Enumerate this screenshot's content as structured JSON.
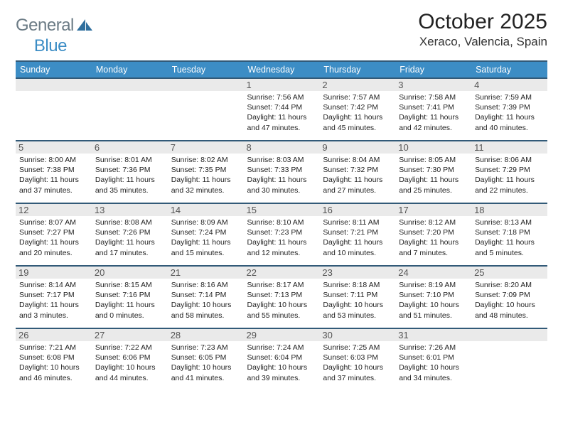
{
  "brand": {
    "general": "General",
    "blue": "Blue"
  },
  "title": "October 2025",
  "location": "Xeraco, Valencia, Spain",
  "colors": {
    "header_bg": "#3c8dc5",
    "header_border": "#325a78",
    "daynum_bg": "#eaeaea",
    "logo_gray": "#6b7b85",
    "logo_blue": "#3c8dc5"
  },
  "weekdays": [
    "Sunday",
    "Monday",
    "Tuesday",
    "Wednesday",
    "Thursday",
    "Friday",
    "Saturday"
  ],
  "weeks": [
    [
      null,
      null,
      null,
      {
        "day": "1",
        "sunrise": "Sunrise: 7:56 AM",
        "sunset": "Sunset: 7:44 PM",
        "dl1": "Daylight: 11 hours",
        "dl2": "and 47 minutes."
      },
      {
        "day": "2",
        "sunrise": "Sunrise: 7:57 AM",
        "sunset": "Sunset: 7:42 PM",
        "dl1": "Daylight: 11 hours",
        "dl2": "and 45 minutes."
      },
      {
        "day": "3",
        "sunrise": "Sunrise: 7:58 AM",
        "sunset": "Sunset: 7:41 PM",
        "dl1": "Daylight: 11 hours",
        "dl2": "and 42 minutes."
      },
      {
        "day": "4",
        "sunrise": "Sunrise: 7:59 AM",
        "sunset": "Sunset: 7:39 PM",
        "dl1": "Daylight: 11 hours",
        "dl2": "and 40 minutes."
      }
    ],
    [
      {
        "day": "5",
        "sunrise": "Sunrise: 8:00 AM",
        "sunset": "Sunset: 7:38 PM",
        "dl1": "Daylight: 11 hours",
        "dl2": "and 37 minutes."
      },
      {
        "day": "6",
        "sunrise": "Sunrise: 8:01 AM",
        "sunset": "Sunset: 7:36 PM",
        "dl1": "Daylight: 11 hours",
        "dl2": "and 35 minutes."
      },
      {
        "day": "7",
        "sunrise": "Sunrise: 8:02 AM",
        "sunset": "Sunset: 7:35 PM",
        "dl1": "Daylight: 11 hours",
        "dl2": "and 32 minutes."
      },
      {
        "day": "8",
        "sunrise": "Sunrise: 8:03 AM",
        "sunset": "Sunset: 7:33 PM",
        "dl1": "Daylight: 11 hours",
        "dl2": "and 30 minutes."
      },
      {
        "day": "9",
        "sunrise": "Sunrise: 8:04 AM",
        "sunset": "Sunset: 7:32 PM",
        "dl1": "Daylight: 11 hours",
        "dl2": "and 27 minutes."
      },
      {
        "day": "10",
        "sunrise": "Sunrise: 8:05 AM",
        "sunset": "Sunset: 7:30 PM",
        "dl1": "Daylight: 11 hours",
        "dl2": "and 25 minutes."
      },
      {
        "day": "11",
        "sunrise": "Sunrise: 8:06 AM",
        "sunset": "Sunset: 7:29 PM",
        "dl1": "Daylight: 11 hours",
        "dl2": "and 22 minutes."
      }
    ],
    [
      {
        "day": "12",
        "sunrise": "Sunrise: 8:07 AM",
        "sunset": "Sunset: 7:27 PM",
        "dl1": "Daylight: 11 hours",
        "dl2": "and 20 minutes."
      },
      {
        "day": "13",
        "sunrise": "Sunrise: 8:08 AM",
        "sunset": "Sunset: 7:26 PM",
        "dl1": "Daylight: 11 hours",
        "dl2": "and 17 minutes."
      },
      {
        "day": "14",
        "sunrise": "Sunrise: 8:09 AM",
        "sunset": "Sunset: 7:24 PM",
        "dl1": "Daylight: 11 hours",
        "dl2": "and 15 minutes."
      },
      {
        "day": "15",
        "sunrise": "Sunrise: 8:10 AM",
        "sunset": "Sunset: 7:23 PM",
        "dl1": "Daylight: 11 hours",
        "dl2": "and 12 minutes."
      },
      {
        "day": "16",
        "sunrise": "Sunrise: 8:11 AM",
        "sunset": "Sunset: 7:21 PM",
        "dl1": "Daylight: 11 hours",
        "dl2": "and 10 minutes."
      },
      {
        "day": "17",
        "sunrise": "Sunrise: 8:12 AM",
        "sunset": "Sunset: 7:20 PM",
        "dl1": "Daylight: 11 hours",
        "dl2": "and 7 minutes."
      },
      {
        "day": "18",
        "sunrise": "Sunrise: 8:13 AM",
        "sunset": "Sunset: 7:18 PM",
        "dl1": "Daylight: 11 hours",
        "dl2": "and 5 minutes."
      }
    ],
    [
      {
        "day": "19",
        "sunrise": "Sunrise: 8:14 AM",
        "sunset": "Sunset: 7:17 PM",
        "dl1": "Daylight: 11 hours",
        "dl2": "and 3 minutes."
      },
      {
        "day": "20",
        "sunrise": "Sunrise: 8:15 AM",
        "sunset": "Sunset: 7:16 PM",
        "dl1": "Daylight: 11 hours",
        "dl2": "and 0 minutes."
      },
      {
        "day": "21",
        "sunrise": "Sunrise: 8:16 AM",
        "sunset": "Sunset: 7:14 PM",
        "dl1": "Daylight: 10 hours",
        "dl2": "and 58 minutes."
      },
      {
        "day": "22",
        "sunrise": "Sunrise: 8:17 AM",
        "sunset": "Sunset: 7:13 PM",
        "dl1": "Daylight: 10 hours",
        "dl2": "and 55 minutes."
      },
      {
        "day": "23",
        "sunrise": "Sunrise: 8:18 AM",
        "sunset": "Sunset: 7:11 PM",
        "dl1": "Daylight: 10 hours",
        "dl2": "and 53 minutes."
      },
      {
        "day": "24",
        "sunrise": "Sunrise: 8:19 AM",
        "sunset": "Sunset: 7:10 PM",
        "dl1": "Daylight: 10 hours",
        "dl2": "and 51 minutes."
      },
      {
        "day": "25",
        "sunrise": "Sunrise: 8:20 AM",
        "sunset": "Sunset: 7:09 PM",
        "dl1": "Daylight: 10 hours",
        "dl2": "and 48 minutes."
      }
    ],
    [
      {
        "day": "26",
        "sunrise": "Sunrise: 7:21 AM",
        "sunset": "Sunset: 6:08 PM",
        "dl1": "Daylight: 10 hours",
        "dl2": "and 46 minutes."
      },
      {
        "day": "27",
        "sunrise": "Sunrise: 7:22 AM",
        "sunset": "Sunset: 6:06 PM",
        "dl1": "Daylight: 10 hours",
        "dl2": "and 44 minutes."
      },
      {
        "day": "28",
        "sunrise": "Sunrise: 7:23 AM",
        "sunset": "Sunset: 6:05 PM",
        "dl1": "Daylight: 10 hours",
        "dl2": "and 41 minutes."
      },
      {
        "day": "29",
        "sunrise": "Sunrise: 7:24 AM",
        "sunset": "Sunset: 6:04 PM",
        "dl1": "Daylight: 10 hours",
        "dl2": "and 39 minutes."
      },
      {
        "day": "30",
        "sunrise": "Sunrise: 7:25 AM",
        "sunset": "Sunset: 6:03 PM",
        "dl1": "Daylight: 10 hours",
        "dl2": "and 37 minutes."
      },
      {
        "day": "31",
        "sunrise": "Sunrise: 7:26 AM",
        "sunset": "Sunset: 6:01 PM",
        "dl1": "Daylight: 10 hours",
        "dl2": "and 34 minutes."
      },
      null
    ]
  ]
}
